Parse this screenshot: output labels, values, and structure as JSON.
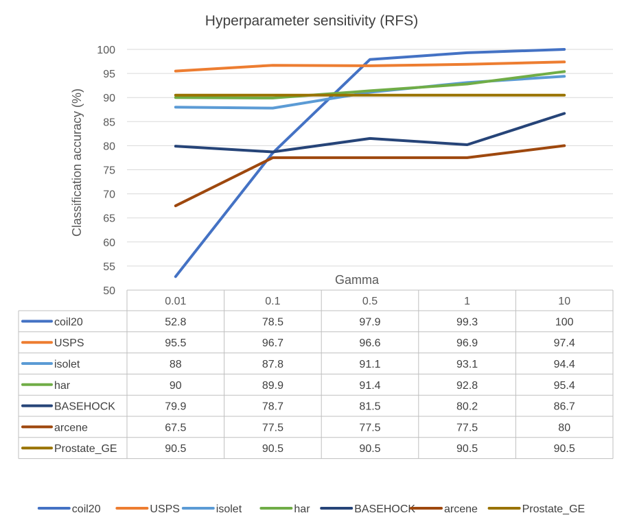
{
  "chart_data": {
    "type": "line",
    "title": "Hyperparameter sensitivity (RFS)",
    "xlabel": "Gamma",
    "ylabel": "Classification accuracy (%)",
    "categories": [
      "0.01",
      "0.1",
      "0.5",
      "1",
      "10"
    ],
    "ylim": [
      50,
      100
    ],
    "yticks": [
      50,
      55,
      60,
      65,
      70,
      75,
      80,
      85,
      90,
      95,
      100
    ],
    "grid": true,
    "legend": "bottom",
    "data_table": true,
    "series": [
      {
        "name": "coil20",
        "color": "#4472C4",
        "values": [
          52.8,
          78.5,
          97.9,
          99.3,
          100
        ]
      },
      {
        "name": "USPS",
        "color": "#ED7D31",
        "values": [
          95.5,
          96.7,
          96.6,
          96.9,
          97.4
        ]
      },
      {
        "name": "isolet",
        "color": "#5B9BD5",
        "values": [
          88,
          87.8,
          91.1,
          93.1,
          94.4
        ]
      },
      {
        "name": "har",
        "color": "#70AD47",
        "values": [
          90,
          89.9,
          91.4,
          92.8,
          95.4
        ]
      },
      {
        "name": "BASEHOCK",
        "color": "#264478",
        "values": [
          79.9,
          78.7,
          81.5,
          80.2,
          86.7
        ]
      },
      {
        "name": "arcene",
        "color": "#9E480E",
        "values": [
          67.5,
          77.5,
          77.5,
          77.5,
          80
        ]
      },
      {
        "name": "Prostate_GE",
        "color": "#997300",
        "values": [
          90.5,
          90.5,
          90.5,
          90.5,
          90.5
        ]
      }
    ]
  }
}
